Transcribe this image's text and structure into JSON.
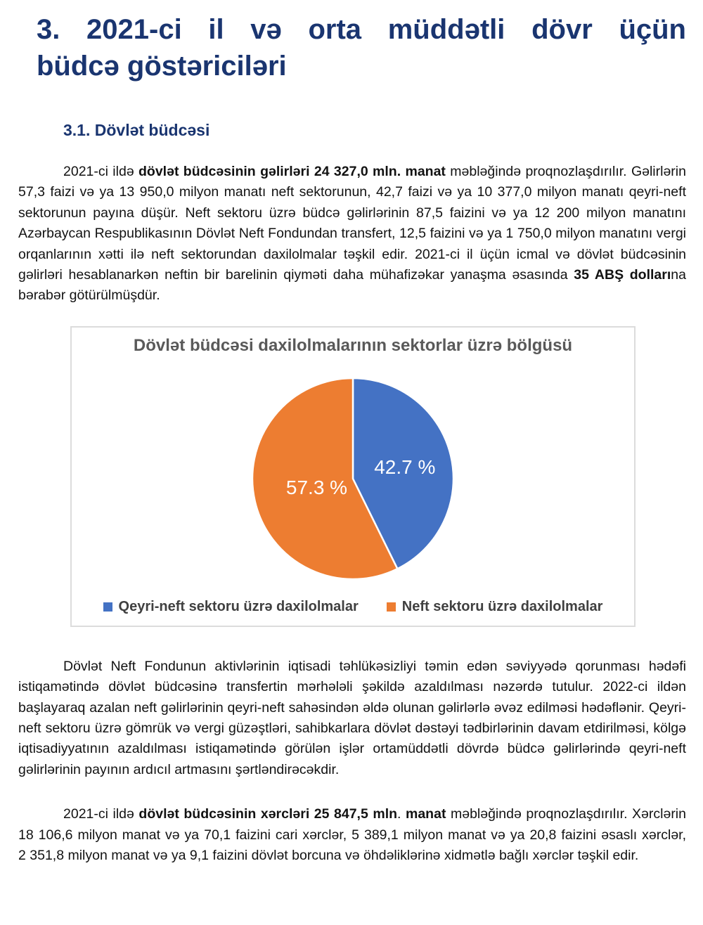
{
  "document": {
    "heading": {
      "line1": "3. 2021-ci il və orta müddətli dövr üçün",
      "line2": "büdcə göstəriciləri"
    },
    "subheading": "3.1. Dövlət büdcəsi",
    "paragraphs": {
      "revenues": {
        "runs": [
          {
            "text": "2021-ci ildə ",
            "bold": false
          },
          {
            "text": "dövlət büdcəsinin gəlirləri 24 327,0 mln. manat",
            "bold": true
          },
          {
            "text": " məbləğində proqnozlaşdırılır. Gəlirlərin 57,3 faizi və ya 13 950,0 milyon manatı neft sektorunun, 42,7 faizi və ya 10 377,0 milyon manatı qeyri-neft sektorunun payına düşür. Neft sektoru üzrə büdcə gəlirlərinin 87,5 faizini və ya 12 200 milyon manatını Azərbaycan Respublikasının Dövlət Neft Fondundan transfert, 12,5 faizini və ya 1 750,0 milyon manatını vergi orqanlarının xətti ilə neft sektorundan daxilolmalar təşkil edir. 2021-ci il üçün icmal və dövlət büdcəsinin gəlirləri hesablanarkən neftin bir barelinin qiyməti daha mühafizəkar yanaşma əsasında ",
            "bold": false
          },
          {
            "text": "35 ABŞ dolları",
            "bold": true
          },
          {
            "text": "na bərabər götürülmüşdür.",
            "bold": false
          }
        ]
      },
      "transfer": "Dövlət Neft Fondunun aktivlərinin iqtisadi təhlükəsizliyi təmin edən səviyyədə qorunması hədəfi istiqamətində dövlət büdcəsinə transfertin mərhələli şəkildə azaldılması nəzərdə tutulur. 2022-ci ildən başlayaraq azalan neft gəlirlərinin qeyri-neft sahəsindən əldə olunan gəlirlərlə əvəz edilməsi hədəflənir. Qeyri-neft sektoru üzrə gömrük və vergi güzəştləri, sahibkarlara dövlət dəstəyi tədbirlərinin davam etdirilməsi, kölgə iqtisadiyyatının azaldılması istiqamətində görülən işlər ortamüddətli dövrdə büdcə gəlirlərində qeyri-neft gəlirlərinin payının ardıcıl artmasını şərtləndirəcəkdir.",
      "expenses": {
        "runs": [
          {
            "text": "2021-ci ildə ",
            "bold": false
          },
          {
            "text": "dövlət büdcəsinin xərcləri 25 847,5 mln",
            "bold": true
          },
          {
            "text": ". ",
            "bold": false
          },
          {
            "text": "manat",
            "bold": true
          },
          {
            "text": " məbləğində proqnozlaşdırılır. Xərclərin 18 106,6 milyon manat və ya 70,1 faizini cari xərclər, 5 389,1 milyon manat və ya 20,8 faizini əsaslı xərclər, 2 351,8 milyon manat və ya 9,1 faizini dövlət borcuna və öhdəliklərinə xidmətlə bağlı xərclər təşkil edir.",
            "bold": false
          }
        ]
      }
    }
  },
  "chart_data": {
    "type": "pie",
    "title": "Dövlət büdcəsi daxilolmalarının sektorlar üzrə bölgüsü",
    "slices": [
      {
        "label": "Qeyri-neft sektoru üzrə daxilolmalar",
        "value": 42.7,
        "display": "42.7 %",
        "color": "#4472C4",
        "label_r": 0.53
      },
      {
        "label": "Neft sektoru üzrə daxilolmalar",
        "value": 57.3,
        "display": "57.3 %",
        "color": "#ED7D31",
        "label_r": 0.37
      }
    ],
    "start_angle_deg": 0,
    "direction": "clockwise",
    "legend_position": "bottom",
    "slice_border_color": "#ffffff"
  },
  "colors": {
    "heading": "#1a3570",
    "chart_title": "#595959",
    "legend_text": "#404040",
    "chart_border": "#dcdcdc"
  }
}
